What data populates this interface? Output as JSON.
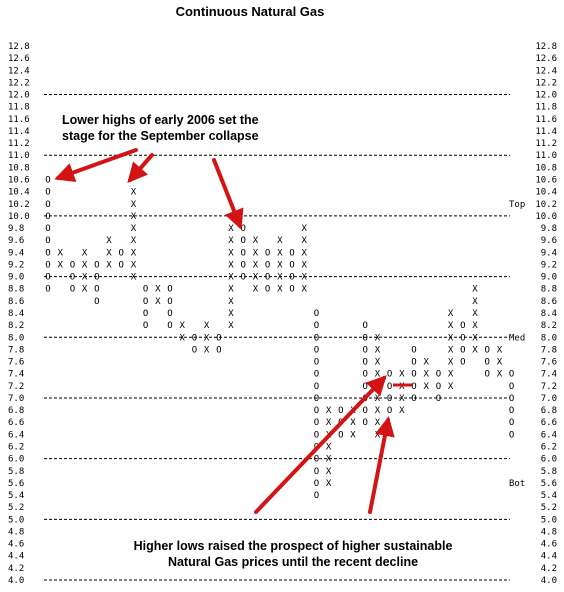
{
  "chart_data": {
    "type": "point-and-figure",
    "title": "Continuous Natural Gas",
    "y_ticks": [
      "12.8",
      "12.6",
      "12.4",
      "12.2",
      "12.0",
      "11.8",
      "11.6",
      "11.4",
      "11.2",
      "11.0",
      "10.8",
      "10.6",
      "10.4",
      "10.2",
      "10.0",
      "9.8",
      "9.6",
      "9.4",
      "9.2",
      "9.0",
      "8.8",
      "8.6",
      "8.4",
      "8.2",
      "8.0",
      "7.8",
      "7.6",
      "7.4",
      "7.2",
      "7.0",
      "6.8",
      "6.6",
      "6.4",
      "6.2",
      "6.0",
      "5.8",
      "5.6",
      "5.4",
      "5.2",
      "5.0",
      "4.8",
      "4.6",
      "4.4",
      "4.2",
      "4.0"
    ],
    "ylim": [
      4.0,
      12.8
    ],
    "major_lines": [
      12.0,
      11.0,
      10.0,
      9.0,
      8.0,
      7.0,
      6.0,
      5.0,
      4.0
    ],
    "band_labels": [
      {
        "label": "Top",
        "value": 10.2
      },
      {
        "label": "Med",
        "value": 8.0
      },
      {
        "label": "Bot",
        "value": 5.6
      }
    ],
    "columns": [
      {
        "col": 0,
        "type": "O",
        "from": 10.6,
        "to": 8.8
      },
      {
        "col": 1,
        "type": "X",
        "from": 9.4,
        "to": 9.2
      },
      {
        "col": 2,
        "type": "O",
        "from": 9.2,
        "to": 8.8
      },
      {
        "col": 3,
        "type": "X",
        "from": 9.4,
        "to": 8.8
      },
      {
        "col": 4,
        "type": "O",
        "from": 9.2,
        "to": 8.6
      },
      {
        "col": 5,
        "type": "X",
        "from": 9.6,
        "to": 9.2
      },
      {
        "col": 6,
        "type": "O",
        "from": 9.4,
        "to": 9.2
      },
      {
        "col": 7,
        "type": "X",
        "from": 10.4,
        "to": 9.0
      },
      {
        "col": 8,
        "type": "O",
        "from": 8.8,
        "to": 8.2
      },
      {
        "col": 9,
        "type": "X",
        "from": 8.8,
        "to": 8.6
      },
      {
        "col": 10,
        "type": "O",
        "from": 8.8,
        "to": 8.2
      },
      {
        "col": 11,
        "type": "X",
        "from": 8.2,
        "to": 8.0
      },
      {
        "col": 12,
        "type": "O",
        "from": 8.0,
        "to": 7.8
      },
      {
        "col": 13,
        "type": "X",
        "from": 8.2,
        "to": 7.8
      },
      {
        "col": 14,
        "type": "O",
        "from": 8.0,
        "to": 7.8
      },
      {
        "col": 15,
        "type": "X",
        "from": 9.8,
        "to": 8.2
      },
      {
        "col": 16,
        "type": "O",
        "from": 9.8,
        "to": 9.0
      },
      {
        "col": 17,
        "type": "X",
        "from": 9.6,
        "to": 8.8
      },
      {
        "col": 18,
        "type": "O",
        "from": 9.4,
        "to": 8.8
      },
      {
        "col": 19,
        "type": "X",
        "from": 9.6,
        "to": 8.8
      },
      {
        "col": 20,
        "type": "O",
        "from": 9.4,
        "to": 8.8
      },
      {
        "col": 21,
        "type": "X",
        "from": 9.8,
        "to": 8.8
      },
      {
        "col": 22,
        "type": "O",
        "from": 8.4,
        "to": 5.4
      },
      {
        "col": 23,
        "type": "X",
        "from": 6.8,
        "to": 5.6
      },
      {
        "col": 24,
        "type": "O",
        "from": 6.8,
        "to": 6.4
      },
      {
        "col": 25,
        "type": "X",
        "from": 6.8,
        "to": 6.4
      },
      {
        "col": 26,
        "type": "O",
        "from": 8.2,
        "to": 6.6
      },
      {
        "col": 27,
        "type": "X",
        "from": 8.0,
        "to": 6.4
      },
      {
        "col": 28,
        "type": "O",
        "from": 7.4,
        "to": 6.8
      },
      {
        "col": 29,
        "type": "X",
        "from": 7.4,
        "to": 6.8
      },
      {
        "col": 30,
        "type": "O",
        "from": 7.8,
        "to": 7.0
      },
      {
        "col": 31,
        "type": "X",
        "from": 7.6,
        "to": 7.2
      },
      {
        "col": 32,
        "type": "O",
        "from": 7.4,
        "to": 7.0
      },
      {
        "col": 33,
        "type": "X",
        "from": 8.4,
        "to": 7.2
      },
      {
        "col": 34,
        "type": "O",
        "from": 8.2,
        "to": 7.6
      },
      {
        "col": 35,
        "type": "X",
        "from": 8.8,
        "to": 7.8
      },
      {
        "col": 36,
        "type": "O",
        "from": 7.8,
        "to": 7.4
      },
      {
        "col": 37,
        "type": "X",
        "from": 7.8,
        "to": 7.4
      },
      {
        "col": 38,
        "type": "O",
        "from": 7.4,
        "to": 6.4
      }
    ],
    "annotations": [
      {
        "text": "Lower highs of early 2006 set the",
        "line": 1,
        "group": "top"
      },
      {
        "text": "stage for the September collapse",
        "line": 2,
        "group": "top"
      },
      {
        "text": "Higher lows raised the prospect of higher sustainable",
        "line": 1,
        "group": "bottom"
      },
      {
        "text": "Natural Gas prices until the recent decline",
        "line": 2,
        "group": "bottom"
      }
    ],
    "arrow_color": "#d41414"
  }
}
